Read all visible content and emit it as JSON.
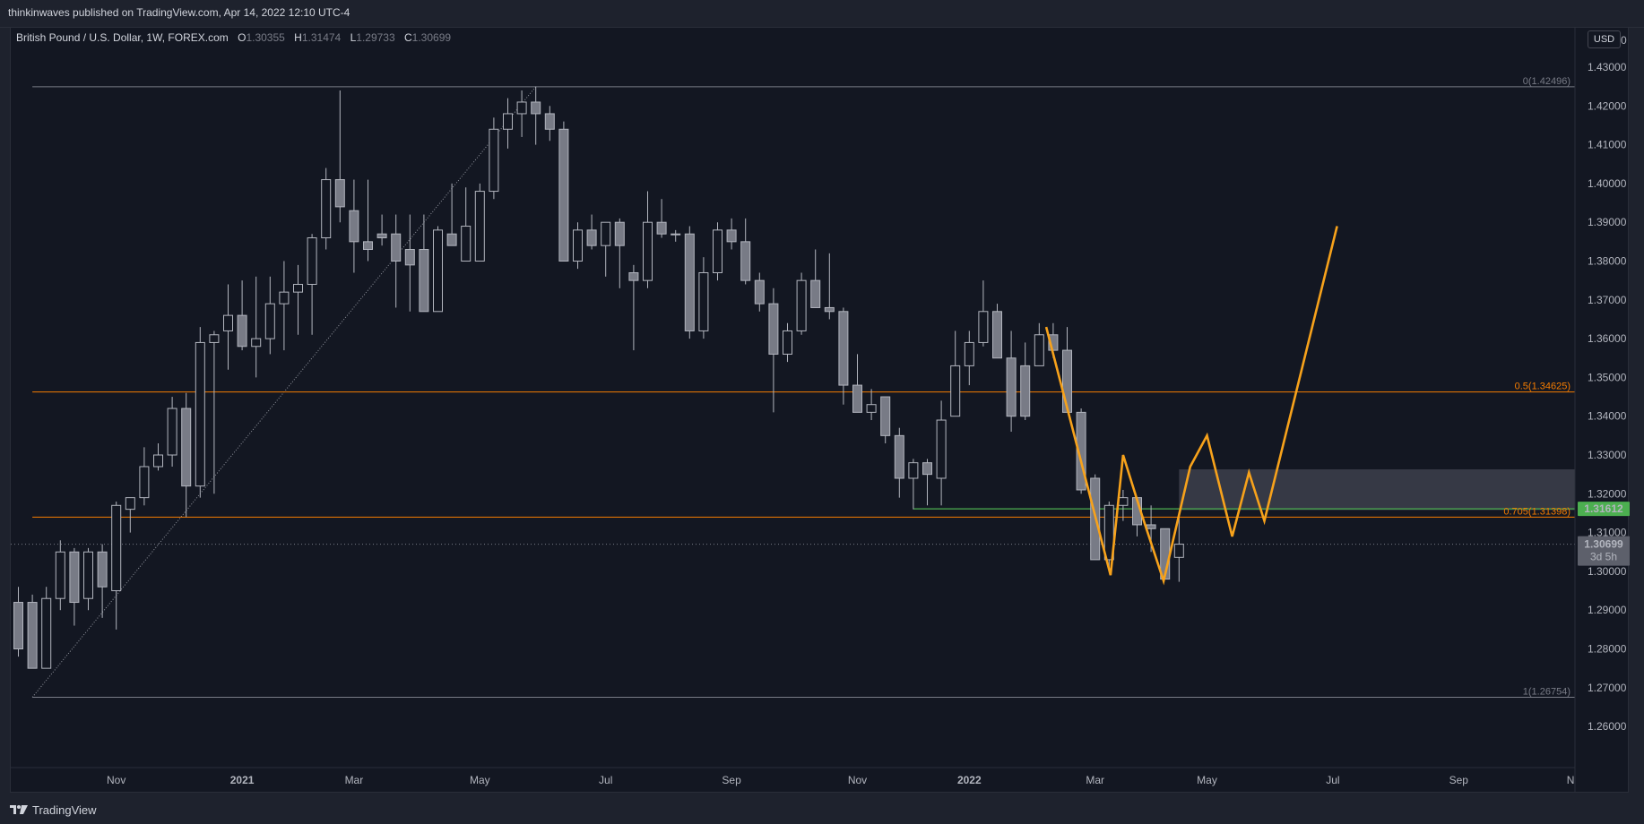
{
  "header": {
    "publish_line": "thinkinwaves published on TradingView.com, Apr 14, 2022 12:10 UTC-4"
  },
  "legend": {
    "symbol": "British Pound / U.S. Dollar, 1W, FOREX.com",
    "open_label": "O",
    "open": "1.30355",
    "high_label": "H",
    "high": "1.31474",
    "low_label": "L",
    "low": "1.29733",
    "close_label": "C",
    "close": "1.30699"
  },
  "currency": "USD",
  "footer": {
    "brand": "TradingView",
    "logo_icon": "tradingview-logo-icon"
  },
  "colors": {
    "background": "#131722",
    "candle_fill": "#787b86",
    "candle_line": "#b2b5be",
    "fib_line_grey": "#787b86",
    "fib_line_orange": "#f57c00",
    "projection": "#f7a21b",
    "support_line": "#4caf50",
    "zone_fill": "#434651"
  },
  "chart_data": {
    "type": "candlestick",
    "timeframe": "1W",
    "ylim": [
      1.2505,
      1.4525
    ],
    "y_ticks": [
      "1.26000",
      "1.27000",
      "1.28000",
      "1.29000",
      "1.30000",
      "1.31000",
      "1.32000",
      "1.33000",
      "1.34000",
      "1.35000",
      "1.36000",
      "1.37000",
      "1.38000",
      "1.39000",
      "1.40000",
      "1.41000",
      "1.42000",
      "1.43000"
    ],
    "y_tick_values": [
      1.26,
      1.27,
      1.28,
      1.29,
      1.3,
      1.31,
      1.32,
      1.33,
      1.34,
      1.35,
      1.36,
      1.37,
      1.38,
      1.39,
      1.4,
      1.41,
      1.42,
      1.43
    ],
    "top_partial_tick": "1.4",
    "top_partial_tick_suffix": "0",
    "x_ticks": [
      {
        "label": "Nov",
        "index": 7
      },
      {
        "label": "2021",
        "index": 16
      },
      {
        "label": "Mar",
        "index": 24
      },
      {
        "label": "May",
        "index": 33
      },
      {
        "label": "Jul",
        "index": 42
      },
      {
        "label": "Sep",
        "index": 51
      },
      {
        "label": "Nov",
        "index": 60
      },
      {
        "label": "2022",
        "index": 68
      },
      {
        "label": "Mar",
        "index": 77
      },
      {
        "label": "May",
        "index": 85
      },
      {
        "label": "Jul",
        "index": 94
      },
      {
        "label": "Sep",
        "index": 103
      },
      {
        "label": "N",
        "index": 111
      }
    ],
    "candles": [
      {
        "o": 1.292,
        "h": 1.296,
        "l": 1.278,
        "c": 1.28
      },
      {
        "o": 1.292,
        "h": 1.294,
        "l": 1.276,
        "c": 1.275
      },
      {
        "o": 1.275,
        "h": 1.296,
        "l": 1.275,
        "c": 1.293
      },
      {
        "o": 1.293,
        "h": 1.308,
        "l": 1.29,
        "c": 1.305
      },
      {
        "o": 1.305,
        "h": 1.306,
        "l": 1.286,
        "c": 1.292
      },
      {
        "o": 1.293,
        "h": 1.306,
        "l": 1.29,
        "c": 1.305
      },
      {
        "o": 1.305,
        "h": 1.307,
        "l": 1.288,
        "c": 1.296
      },
      {
        "o": 1.295,
        "h": 1.318,
        "l": 1.285,
        "c": 1.317
      },
      {
        "o": 1.316,
        "h": 1.319,
        "l": 1.31,
        "c": 1.319
      },
      {
        "o": 1.319,
        "h": 1.332,
        "l": 1.317,
        "c": 1.327
      },
      {
        "o": 1.327,
        "h": 1.333,
        "l": 1.326,
        "c": 1.33
      },
      {
        "o": 1.33,
        "h": 1.345,
        "l": 1.327,
        "c": 1.342
      },
      {
        "o": 1.342,
        "h": 1.346,
        "l": 1.314,
        "c": 1.322
      },
      {
        "o": 1.322,
        "h": 1.363,
        "l": 1.319,
        "c": 1.359
      },
      {
        "o": 1.359,
        "h": 1.362,
        "l": 1.32,
        "c": 1.361
      },
      {
        "o": 1.362,
        "h": 1.374,
        "l": 1.352,
        "c": 1.366
      },
      {
        "o": 1.366,
        "h": 1.375,
        "l": 1.357,
        "c": 1.358
      },
      {
        "o": 1.358,
        "h": 1.376,
        "l": 1.35,
        "c": 1.36
      },
      {
        "o": 1.36,
        "h": 1.376,
        "l": 1.356,
        "c": 1.369
      },
      {
        "o": 1.369,
        "h": 1.38,
        "l": 1.357,
        "c": 1.372
      },
      {
        "o": 1.372,
        "h": 1.379,
        "l": 1.361,
        "c": 1.374
      },
      {
        "o": 1.374,
        "h": 1.387,
        "l": 1.361,
        "c": 1.386
      },
      {
        "o": 1.386,
        "h": 1.404,
        "l": 1.383,
        "c": 1.401
      },
      {
        "o": 1.401,
        "h": 1.424,
        "l": 1.39,
        "c": 1.394
      },
      {
        "o": 1.393,
        "h": 1.401,
        "l": 1.377,
        "c": 1.385
      },
      {
        "o": 1.385,
        "h": 1.401,
        "l": 1.38,
        "c": 1.383
      },
      {
        "o": 1.387,
        "h": 1.392,
        "l": 1.384,
        "c": 1.386
      },
      {
        "o": 1.387,
        "h": 1.392,
        "l": 1.368,
        "c": 1.38
      },
      {
        "o": 1.383,
        "h": 1.392,
        "l": 1.367,
        "c": 1.379
      },
      {
        "o": 1.383,
        "h": 1.392,
        "l": 1.367,
        "c": 1.367
      },
      {
        "o": 1.367,
        "h": 1.389,
        "l": 1.367,
        "c": 1.388
      },
      {
        "o": 1.387,
        "h": 1.4,
        "l": 1.384,
        "c": 1.384
      },
      {
        "o": 1.38,
        "h": 1.399,
        "l": 1.38,
        "c": 1.389
      },
      {
        "o": 1.38,
        "h": 1.4,
        "l": 1.38,
        "c": 1.398
      },
      {
        "o": 1.398,
        "h": 1.417,
        "l": 1.396,
        "c": 1.414
      },
      {
        "o": 1.414,
        "h": 1.422,
        "l": 1.409,
        "c": 1.418
      },
      {
        "o": 1.418,
        "h": 1.424,
        "l": 1.412,
        "c": 1.421
      },
      {
        "o": 1.421,
        "h": 1.425,
        "l": 1.41,
        "c": 1.418
      },
      {
        "o": 1.418,
        "h": 1.42,
        "l": 1.411,
        "c": 1.414
      },
      {
        "o": 1.414,
        "h": 1.416,
        "l": 1.38,
        "c": 1.38
      },
      {
        "o": 1.38,
        "h": 1.39,
        "l": 1.378,
        "c": 1.388
      },
      {
        "o": 1.388,
        "h": 1.392,
        "l": 1.383,
        "c": 1.384
      },
      {
        "o": 1.384,
        "h": 1.39,
        "l": 1.376,
        "c": 1.39
      },
      {
        "o": 1.39,
        "h": 1.391,
        "l": 1.373,
        "c": 1.384
      },
      {
        "o": 1.377,
        "h": 1.379,
        "l": 1.357,
        "c": 1.375
      },
      {
        "o": 1.375,
        "h": 1.398,
        "l": 1.373,
        "c": 1.39
      },
      {
        "o": 1.39,
        "h": 1.396,
        "l": 1.386,
        "c": 1.387
      },
      {
        "o": 1.387,
        "h": 1.388,
        "l": 1.385,
        "c": 1.387
      },
      {
        "o": 1.387,
        "h": 1.389,
        "l": 1.36,
        "c": 1.362
      },
      {
        "o": 1.362,
        "h": 1.381,
        "l": 1.36,
        "c": 1.377
      },
      {
        "o": 1.377,
        "h": 1.39,
        "l": 1.375,
        "c": 1.388
      },
      {
        "o": 1.388,
        "h": 1.391,
        "l": 1.383,
        "c": 1.385
      },
      {
        "o": 1.385,
        "h": 1.391,
        "l": 1.374,
        "c": 1.375
      },
      {
        "o": 1.375,
        "h": 1.377,
        "l": 1.367,
        "c": 1.369
      },
      {
        "o": 1.369,
        "h": 1.373,
        "l": 1.341,
        "c": 1.356
      },
      {
        "o": 1.356,
        "h": 1.364,
        "l": 1.354,
        "c": 1.362
      },
      {
        "o": 1.362,
        "h": 1.377,
        "l": 1.361,
        "c": 1.375
      },
      {
        "o": 1.375,
        "h": 1.383,
        "l": 1.368,
        "c": 1.368
      },
      {
        "o": 1.368,
        "h": 1.382,
        "l": 1.365,
        "c": 1.367
      },
      {
        "o": 1.367,
        "h": 1.368,
        "l": 1.343,
        "c": 1.348
      },
      {
        "o": 1.348,
        "h": 1.356,
        "l": 1.341,
        "c": 1.341
      },
      {
        "o": 1.341,
        "h": 1.347,
        "l": 1.339,
        "c": 1.343
      },
      {
        "o": 1.345,
        "h": 1.345,
        "l": 1.333,
        "c": 1.335
      },
      {
        "o": 1.335,
        "h": 1.337,
        "l": 1.319,
        "c": 1.324
      },
      {
        "o": 1.324,
        "h": 1.329,
        "l": 1.316,
        "c": 1.328
      },
      {
        "o": 1.328,
        "h": 1.329,
        "l": 1.317,
        "c": 1.325
      },
      {
        "o": 1.324,
        "h": 1.344,
        "l": 1.317,
        "c": 1.339
      },
      {
        "o": 1.34,
        "h": 1.362,
        "l": 1.34,
        "c": 1.353
      },
      {
        "o": 1.353,
        "h": 1.362,
        "l": 1.348,
        "c": 1.359
      },
      {
        "o": 1.359,
        "h": 1.375,
        "l": 1.358,
        "c": 1.367
      },
      {
        "o": 1.367,
        "h": 1.369,
        "l": 1.356,
        "c": 1.355
      },
      {
        "o": 1.355,
        "h": 1.362,
        "l": 1.336,
        "c": 1.34
      },
      {
        "o": 1.353,
        "h": 1.359,
        "l": 1.339,
        "c": 1.34
      },
      {
        "o": 1.353,
        "h": 1.364,
        "l": 1.353,
        "c": 1.361
      },
      {
        "o": 1.361,
        "h": 1.364,
        "l": 1.355,
        "c": 1.357
      },
      {
        "o": 1.357,
        "h": 1.363,
        "l": 1.341,
        "c": 1.341
      },
      {
        "o": 1.341,
        "h": 1.342,
        "l": 1.32,
        "c": 1.321
      },
      {
        "o": 1.324,
        "h": 1.325,
        "l": 1.303,
        "c": 1.303
      },
      {
        "o": 1.303,
        "h": 1.318,
        "l": 1.3,
        "c": 1.317
      },
      {
        "o": 1.317,
        "h": 1.321,
        "l": 1.313,
        "c": 1.319
      },
      {
        "o": 1.319,
        "h": 1.319,
        "l": 1.309,
        "c": 1.312
      },
      {
        "o": 1.312,
        "h": 1.317,
        "l": 1.305,
        "c": 1.311
      },
      {
        "o": 1.311,
        "h": 1.311,
        "l": 1.298,
        "c": 1.298
      },
      {
        "o": 1.3036,
        "h": 1.3147,
        "l": 1.2973,
        "c": 1.307
      }
    ],
    "fib_levels": [
      {
        "label": "0(1.42496)",
        "value": 1.42496,
        "color": "#787b86"
      },
      {
        "label": "0.5(1.34625)",
        "value": 1.34625,
        "color": "#f57c00"
      },
      {
        "label": "0.705(1.31398)",
        "value": 1.31398,
        "color": "#f57c00"
      },
      {
        "label": "1(1.26754)",
        "value": 1.26754,
        "color": "#787b86"
      }
    ],
    "fib_anchor": {
      "from_index": 1,
      "from_value": 1.26754,
      "to_index": 37,
      "to_value": 1.42496
    },
    "support_level": {
      "value": 1.31612,
      "start_index": 64,
      "label": "1.31612"
    },
    "zone": {
      "start_index": 83,
      "top": 1.3263,
      "bottom": 1.3158
    },
    "last_price": {
      "value": 1.30699,
      "label": "1.30699",
      "countdown": "3d 5h"
    },
    "projection": [
      {
        "i": 73.0,
        "v": 1.364
      },
      {
        "i": 78.0,
        "v": 1.3
      },
      {
        "i": 79.0,
        "v": 1.33
      },
      {
        "i": 81.0,
        "v": 1.308
      },
      {
        "i": 83.0,
        "v": 1.388
      },
      {
        "i": 83.1,
        "v": 1.388
      }
    ],
    "projection_main": [
      [
        73.5,
        1.363
      ],
      [
        78.1,
        1.299
      ],
      [
        79.0,
        1.33
      ],
      [
        80.3,
        1.315
      ],
      [
        81.9,
        1.2975
      ],
      [
        83.8,
        1.327
      ],
      [
        85.0,
        1.335
      ],
      [
        86.8,
        1.309
      ],
      [
        88.0,
        1.3255
      ],
      [
        89.1,
        1.313
      ],
      [
        94.3,
        1.389
      ]
    ]
  }
}
